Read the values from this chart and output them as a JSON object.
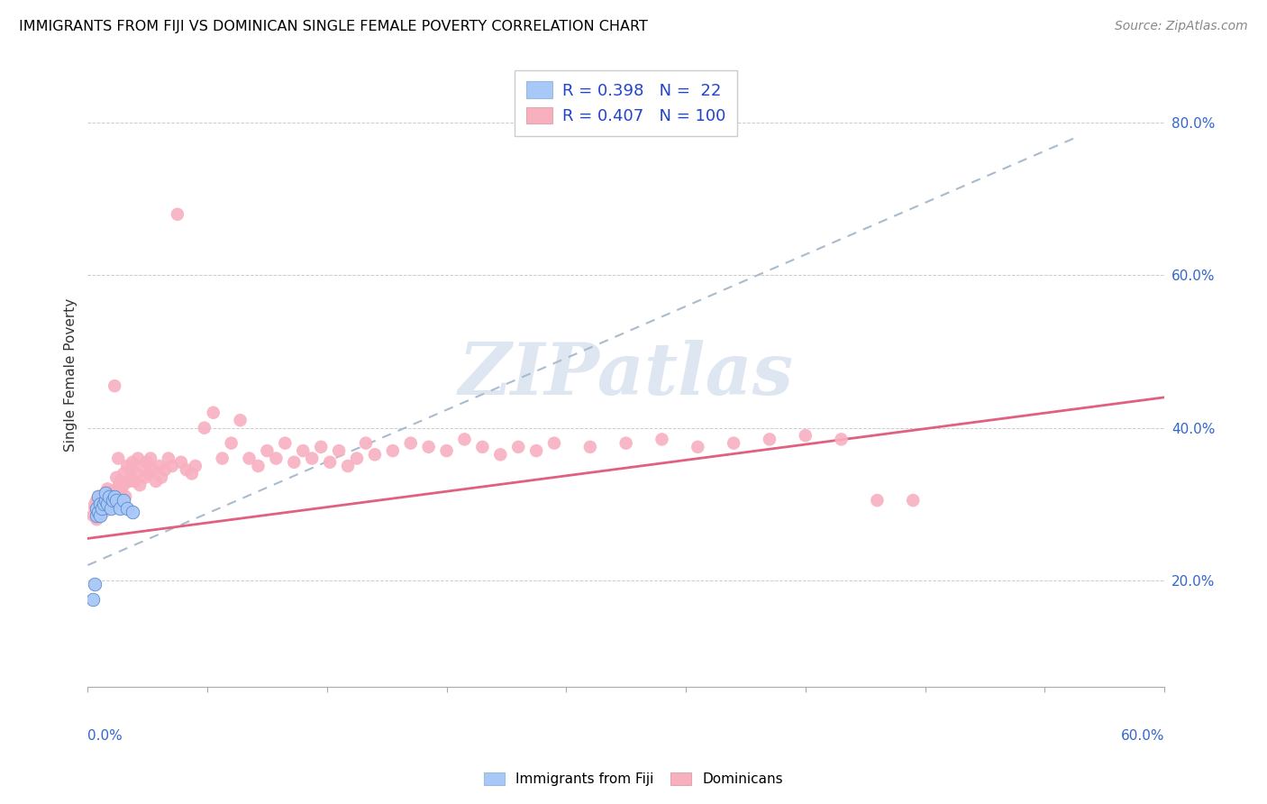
{
  "title": "IMMIGRANTS FROM FIJI VS DOMINICAN SINGLE FEMALE POVERTY CORRELATION CHART",
  "source": "Source: ZipAtlas.com",
  "ylabel": "Single Female Poverty",
  "xlim": [
    0.0,
    0.6
  ],
  "ylim": [
    0.06,
    0.88
  ],
  "fiji_R": 0.398,
  "fiji_N": 22,
  "dominican_R": 0.407,
  "dominican_N": 100,
  "fiji_color": "#a8c8f8",
  "fiji_edge_color": "#5588cc",
  "dominican_color": "#f8b0c0",
  "trend_fiji_color": "#aabbcc",
  "trend_dominican_color": "#e06080",
  "legend_text_color": "#2244cc",
  "watermark_color": "#c8d8e8",
  "fiji_x": [
    0.003,
    0.004,
    0.005,
    0.005,
    0.006,
    0.006,
    0.007,
    0.007,
    0.008,
    0.009,
    0.01,
    0.01,
    0.011,
    0.012,
    0.013,
    0.014,
    0.015,
    0.016,
    0.018,
    0.02,
    0.022,
    0.025
  ],
  "fiji_y": [
    0.175,
    0.195,
    0.285,
    0.295,
    0.29,
    0.31,
    0.285,
    0.3,
    0.295,
    0.3,
    0.305,
    0.315,
    0.3,
    0.31,
    0.295,
    0.305,
    0.31,
    0.305,
    0.295,
    0.305,
    0.295,
    0.29
  ],
  "dom_x": [
    0.003,
    0.004,
    0.004,
    0.005,
    0.005,
    0.006,
    0.006,
    0.007,
    0.007,
    0.008,
    0.008,
    0.009,
    0.009,
    0.01,
    0.01,
    0.011,
    0.011,
    0.012,
    0.012,
    0.013,
    0.013,
    0.014,
    0.014,
    0.015,
    0.015,
    0.016,
    0.016,
    0.017,
    0.017,
    0.018,
    0.018,
    0.019,
    0.02,
    0.02,
    0.021,
    0.022,
    0.023,
    0.024,
    0.025,
    0.026,
    0.027,
    0.028,
    0.029,
    0.03,
    0.032,
    0.033,
    0.034,
    0.035,
    0.036,
    0.038,
    0.04,
    0.041,
    0.043,
    0.045,
    0.047,
    0.05,
    0.052,
    0.055,
    0.058,
    0.06,
    0.065,
    0.07,
    0.075,
    0.08,
    0.085,
    0.09,
    0.095,
    0.1,
    0.105,
    0.11,
    0.115,
    0.12,
    0.125,
    0.13,
    0.135,
    0.14,
    0.145,
    0.15,
    0.155,
    0.16,
    0.17,
    0.18,
    0.19,
    0.2,
    0.21,
    0.22,
    0.23,
    0.24,
    0.25,
    0.26,
    0.28,
    0.3,
    0.32,
    0.34,
    0.36,
    0.38,
    0.4,
    0.42,
    0.44,
    0.46
  ],
  "dom_y": [
    0.285,
    0.295,
    0.3,
    0.28,
    0.305,
    0.295,
    0.31,
    0.285,
    0.3,
    0.31,
    0.295,
    0.305,
    0.29,
    0.315,
    0.3,
    0.32,
    0.3,
    0.295,
    0.315,
    0.31,
    0.295,
    0.31,
    0.3,
    0.455,
    0.315,
    0.32,
    0.335,
    0.31,
    0.36,
    0.325,
    0.33,
    0.315,
    0.34,
    0.325,
    0.31,
    0.35,
    0.33,
    0.345,
    0.355,
    0.33,
    0.34,
    0.36,
    0.325,
    0.35,
    0.335,
    0.355,
    0.34,
    0.36,
    0.345,
    0.33,
    0.35,
    0.335,
    0.345,
    0.36,
    0.35,
    0.68,
    0.355,
    0.345,
    0.34,
    0.35,
    0.4,
    0.42,
    0.36,
    0.38,
    0.41,
    0.36,
    0.35,
    0.37,
    0.36,
    0.38,
    0.355,
    0.37,
    0.36,
    0.375,
    0.355,
    0.37,
    0.35,
    0.36,
    0.38,
    0.365,
    0.37,
    0.38,
    0.375,
    0.37,
    0.385,
    0.375,
    0.365,
    0.375,
    0.37,
    0.38,
    0.375,
    0.38,
    0.385,
    0.375,
    0.38,
    0.385,
    0.39,
    0.385,
    0.305,
    0.305
  ],
  "fiji_trend_x": [
    0.0,
    0.55
  ],
  "fiji_trend_y": [
    0.22,
    0.78
  ],
  "dom_trend_x": [
    0.0,
    0.6
  ],
  "dom_trend_y": [
    0.255,
    0.44
  ]
}
